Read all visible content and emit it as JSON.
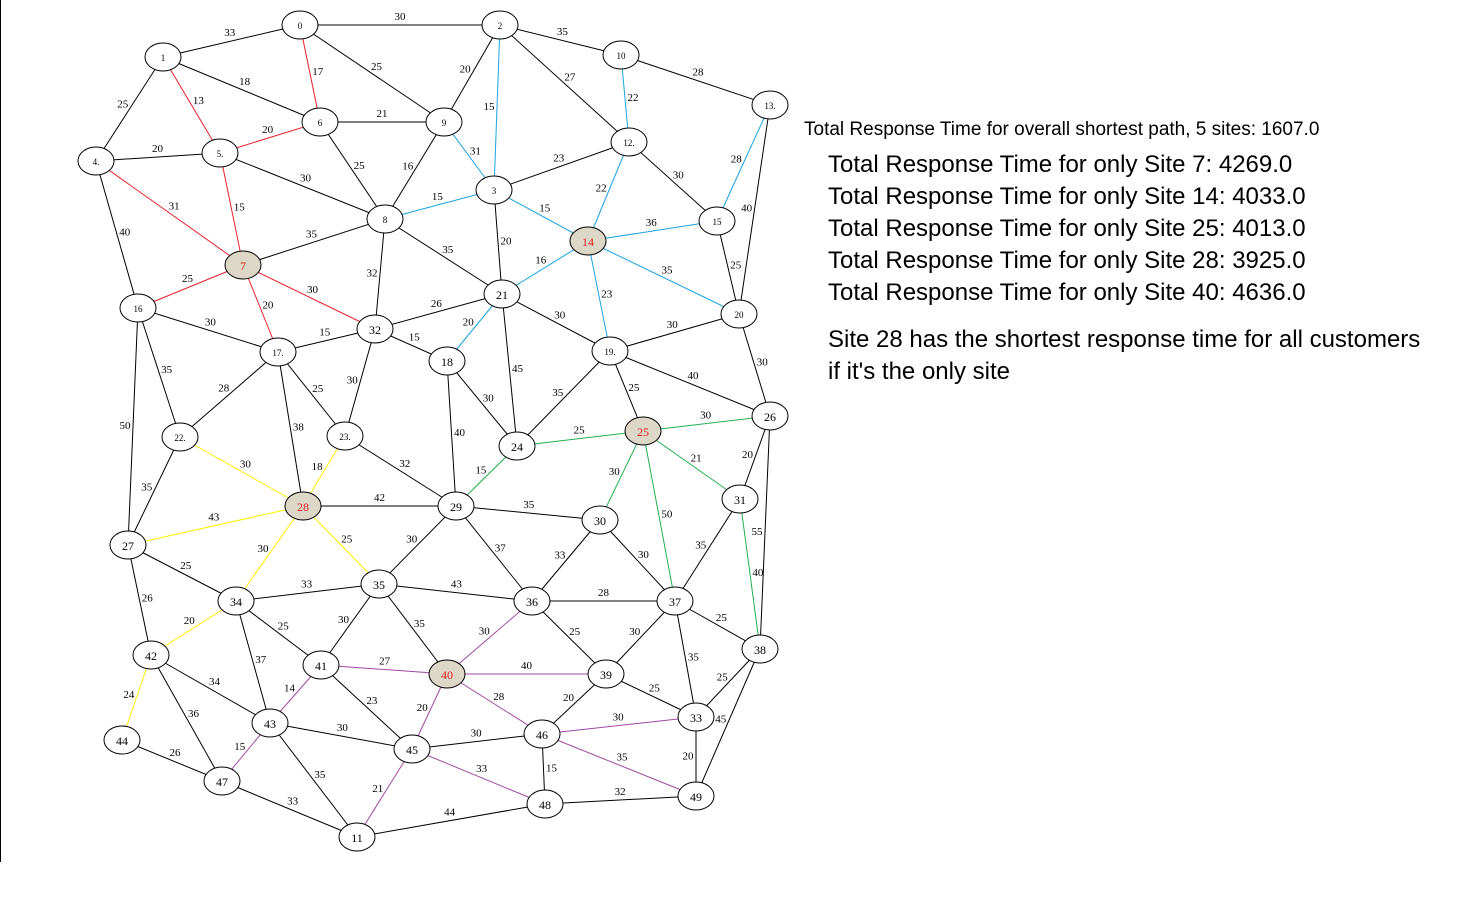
{
  "colors": {
    "edge": "#000000",
    "site_fill": "#ddd7c7",
    "site_label": "#e0201e",
    "site_7": "#e8212a",
    "site_14": "#1aa3e0",
    "site_25": "#22b14c",
    "site_28": "#fff200",
    "site_40": "#a349a4"
  },
  "graph": {
    "sites": [
      "7",
      "14",
      "25",
      "28",
      "40"
    ],
    "nodes": [
      {
        "id": "0",
        "label": "0"
      },
      {
        "id": "1",
        "label": "1"
      },
      {
        "id": "2",
        "label": "2"
      },
      {
        "id": "3",
        "label": "3"
      },
      {
        "id": "4",
        "label": "4."
      },
      {
        "id": "5",
        "label": "5."
      },
      {
        "id": "6",
        "label": "6"
      },
      {
        "id": "7",
        "label": "7"
      },
      {
        "id": "8",
        "label": "8"
      },
      {
        "id": "9",
        "label": "9"
      },
      {
        "id": "10",
        "label": "10"
      },
      {
        "id": "11",
        "label": "11"
      },
      {
        "id": "12",
        "label": "12."
      },
      {
        "id": "13",
        "label": "13."
      },
      {
        "id": "14",
        "label": "14"
      },
      {
        "id": "15",
        "label": "15"
      },
      {
        "id": "16",
        "label": "16"
      },
      {
        "id": "17",
        "label": "17."
      },
      {
        "id": "18",
        "label": "18"
      },
      {
        "id": "19",
        "label": "19."
      },
      {
        "id": "20",
        "label": "20"
      },
      {
        "id": "21",
        "label": "21"
      },
      {
        "id": "22",
        "label": "22."
      },
      {
        "id": "23",
        "label": "23."
      },
      {
        "id": "24",
        "label": "24"
      },
      {
        "id": "25",
        "label": "25"
      },
      {
        "id": "26",
        "label": "26"
      },
      {
        "id": "27",
        "label": "27"
      },
      {
        "id": "28",
        "label": "28"
      },
      {
        "id": "29",
        "label": "29"
      },
      {
        "id": "30",
        "label": "30"
      },
      {
        "id": "31",
        "label": "31"
      },
      {
        "id": "32",
        "label": "32"
      },
      {
        "id": "33",
        "label": "33"
      },
      {
        "id": "34",
        "label": "34"
      },
      {
        "id": "35",
        "label": "35"
      },
      {
        "id": "36",
        "label": "36"
      },
      {
        "id": "37",
        "label": "37"
      },
      {
        "id": "38",
        "label": "38"
      },
      {
        "id": "39",
        "label": "39"
      },
      {
        "id": "40",
        "label": "40"
      },
      {
        "id": "41",
        "label": "41"
      },
      {
        "id": "42",
        "label": "42"
      },
      {
        "id": "43",
        "label": "43"
      },
      {
        "id": "44",
        "label": "44"
      },
      {
        "id": "45",
        "label": "45"
      },
      {
        "id": "46",
        "label": "46"
      },
      {
        "id": "47",
        "label": "47"
      },
      {
        "id": "48",
        "label": "48"
      },
      {
        "id": "49",
        "label": "49"
      }
    ],
    "edges": [
      {
        "a": "0",
        "b": "1",
        "w": "33"
      },
      {
        "a": "0",
        "b": "2",
        "w": "30"
      },
      {
        "a": "0",
        "b": "6",
        "w": "17",
        "site": "7"
      },
      {
        "a": "0",
        "b": "9",
        "w": "25"
      },
      {
        "a": "1",
        "b": "4",
        "w": "25"
      },
      {
        "a": "1",
        "b": "5",
        "w": "13",
        "site": "7"
      },
      {
        "a": "1",
        "b": "6",
        "w": "18"
      },
      {
        "a": "2",
        "b": "3",
        "w": "15",
        "site": "14"
      },
      {
        "a": "2",
        "b": "9",
        "w": "20"
      },
      {
        "a": "2",
        "b": "10",
        "w": "35"
      },
      {
        "a": "2",
        "b": "12",
        "w": "27"
      },
      {
        "a": "3",
        "b": "8",
        "w": "15",
        "site": "14"
      },
      {
        "a": "3",
        "b": "9",
        "w": "31",
        "site": "14"
      },
      {
        "a": "3",
        "b": "12",
        "w": "23"
      },
      {
        "a": "3",
        "b": "14",
        "w": "15",
        "site": "14"
      },
      {
        "a": "3",
        "b": "21",
        "w": "20"
      },
      {
        "a": "4",
        "b": "5",
        "w": "20"
      },
      {
        "a": "4",
        "b": "7",
        "w": "31",
        "site": "7"
      },
      {
        "a": "4",
        "b": "16",
        "w": "40"
      },
      {
        "a": "5",
        "b": "6",
        "w": "20",
        "site": "7"
      },
      {
        "a": "5",
        "b": "7",
        "w": "15",
        "site": "7"
      },
      {
        "a": "5",
        "b": "8",
        "w": "30"
      },
      {
        "a": "6",
        "b": "8",
        "w": "25"
      },
      {
        "a": "6",
        "b": "9",
        "w": "21"
      },
      {
        "a": "7",
        "b": "8",
        "w": "35"
      },
      {
        "a": "7",
        "b": "16",
        "w": "25",
        "site": "7"
      },
      {
        "a": "7",
        "b": "17",
        "w": "20",
        "site": "7"
      },
      {
        "a": "7",
        "b": "32",
        "w": "30",
        "site": "7"
      },
      {
        "a": "8",
        "b": "9",
        "w": "16"
      },
      {
        "a": "8",
        "b": "21",
        "w": "35"
      },
      {
        "a": "8",
        "b": "32",
        "w": "32"
      },
      {
        "a": "10",
        "b": "12",
        "w": "22",
        "site": "14"
      },
      {
        "a": "10",
        "b": "13",
        "w": "28"
      },
      {
        "a": "12",
        "b": "14",
        "w": "22",
        "site": "14"
      },
      {
        "a": "12",
        "b": "15",
        "w": "30"
      },
      {
        "a": "13",
        "b": "15",
        "w": "28",
        "site": "14"
      },
      {
        "a": "13",
        "b": "20",
        "w": "40"
      },
      {
        "a": "14",
        "b": "15",
        "w": "36",
        "site": "14"
      },
      {
        "a": "14",
        "b": "19",
        "w": "23",
        "site": "14"
      },
      {
        "a": "14",
        "b": "20",
        "w": "35",
        "site": "14"
      },
      {
        "a": "14",
        "b": "21",
        "w": "16",
        "site": "14"
      },
      {
        "a": "15",
        "b": "20",
        "w": "25"
      },
      {
        "a": "16",
        "b": "17",
        "w": "30"
      },
      {
        "a": "16",
        "b": "22",
        "w": "35"
      },
      {
        "a": "16",
        "b": "27",
        "w": "50"
      },
      {
        "a": "17",
        "b": "22",
        "w": "28"
      },
      {
        "a": "17",
        "b": "23",
        "w": "25"
      },
      {
        "a": "17",
        "b": "28",
        "w": "38"
      },
      {
        "a": "17",
        "b": "32",
        "w": "15"
      },
      {
        "a": "18",
        "b": "21",
        "w": "20",
        "site": "14"
      },
      {
        "a": "18",
        "b": "24",
        "w": "30"
      },
      {
        "a": "18",
        "b": "29",
        "w": "40"
      },
      {
        "a": "18",
        "b": "32",
        "w": "15"
      },
      {
        "a": "19",
        "b": "20",
        "w": "30"
      },
      {
        "a": "19",
        "b": "21",
        "w": "30"
      },
      {
        "a": "19",
        "b": "24",
        "w": "35"
      },
      {
        "a": "19",
        "b": "25",
        "w": "25"
      },
      {
        "a": "19",
        "b": "26",
        "w": "40"
      },
      {
        "a": "20",
        "b": "26",
        "w": "30"
      },
      {
        "a": "21",
        "b": "24",
        "w": "45"
      },
      {
        "a": "21",
        "b": "32",
        "w": "26"
      },
      {
        "a": "22",
        "b": "27",
        "w": "35"
      },
      {
        "a": "22",
        "b": "28",
        "w": "30",
        "site": "28"
      },
      {
        "a": "23",
        "b": "28",
        "w": "18",
        "site": "28"
      },
      {
        "a": "23",
        "b": "29",
        "w": "32"
      },
      {
        "a": "23",
        "b": "32",
        "w": "30"
      },
      {
        "a": "24",
        "b": "25",
        "w": "25",
        "site": "25"
      },
      {
        "a": "24",
        "b": "29",
        "w": "15",
        "site": "25"
      },
      {
        "a": "25",
        "b": "26",
        "w": "30",
        "site": "25"
      },
      {
        "a": "25",
        "b": "30",
        "w": "30",
        "site": "25"
      },
      {
        "a": "25",
        "b": "31",
        "w": "21",
        "site": "25"
      },
      {
        "a": "25",
        "b": "37",
        "w": "50",
        "site": "25"
      },
      {
        "a": "26",
        "b": "31",
        "w": "20"
      },
      {
        "a": "26",
        "b": "38",
        "w": "55"
      },
      {
        "a": "27",
        "b": "28",
        "w": "43",
        "site": "28"
      },
      {
        "a": "27",
        "b": "34",
        "w": "25"
      },
      {
        "a": "27",
        "b": "42",
        "w": "26"
      },
      {
        "a": "28",
        "b": "29",
        "w": "42"
      },
      {
        "a": "28",
        "b": "34",
        "w": "30",
        "site": "28"
      },
      {
        "a": "28",
        "b": "35",
        "w": "25",
        "site": "28"
      },
      {
        "a": "29",
        "b": "30",
        "w": "35"
      },
      {
        "a": "29",
        "b": "35",
        "w": "30"
      },
      {
        "a": "29",
        "b": "36",
        "w": "37"
      },
      {
        "a": "30",
        "b": "36",
        "w": "33"
      },
      {
        "a": "30",
        "b": "37",
        "w": "30"
      },
      {
        "a": "31",
        "b": "37",
        "w": "35"
      },
      {
        "a": "31",
        "b": "38",
        "w": "40",
        "site": "25"
      },
      {
        "a": "33",
        "b": "37",
        "w": "35"
      },
      {
        "a": "33",
        "b": "38",
        "w": "25"
      },
      {
        "a": "33",
        "b": "39",
        "w": "25"
      },
      {
        "a": "33",
        "b": "46",
        "w": "30",
        "site": "40"
      },
      {
        "a": "33",
        "b": "49",
        "w": "20"
      },
      {
        "a": "34",
        "b": "35",
        "w": "33"
      },
      {
        "a": "34",
        "b": "41",
        "w": "25"
      },
      {
        "a": "34",
        "b": "42",
        "w": "20",
        "site": "28"
      },
      {
        "a": "34",
        "b": "43",
        "w": "37"
      },
      {
        "a": "35",
        "b": "36",
        "w": "43"
      },
      {
        "a": "35",
        "b": "40",
        "w": "35"
      },
      {
        "a": "35",
        "b": "41",
        "w": "30"
      },
      {
        "a": "36",
        "b": "37",
        "w": "28"
      },
      {
        "a": "36",
        "b": "39",
        "w": "25"
      },
      {
        "a": "36",
        "b": "40",
        "w": "30",
        "site": "40"
      },
      {
        "a": "37",
        "b": "38",
        "w": "25"
      },
      {
        "a": "37",
        "b": "39",
        "w": "30"
      },
      {
        "a": "38",
        "b": "49",
        "w": "45"
      },
      {
        "a": "39",
        "b": "40",
        "w": "40",
        "site": "40"
      },
      {
        "a": "39",
        "b": "46",
        "w": "20"
      },
      {
        "a": "40",
        "b": "41",
        "w": "27",
        "site": "40"
      },
      {
        "a": "40",
        "b": "45",
        "w": "20",
        "site": "40"
      },
      {
        "a": "40",
        "b": "46",
        "w": "28",
        "site": "40"
      },
      {
        "a": "41",
        "b": "43",
        "w": "14",
        "site": "40"
      },
      {
        "a": "41",
        "b": "45",
        "w": "23"
      },
      {
        "a": "42",
        "b": "43",
        "w": "34"
      },
      {
        "a": "42",
        "b": "44",
        "w": "24",
        "site": "28"
      },
      {
        "a": "42",
        "b": "47",
        "w": "36"
      },
      {
        "a": "43",
        "b": "45",
        "w": "30"
      },
      {
        "a": "43",
        "b": "47",
        "w": "15",
        "site": "40"
      },
      {
        "a": "43",
        "b": "11",
        "w": "35"
      },
      {
        "a": "44",
        "b": "47",
        "w": "26"
      },
      {
        "a": "45",
        "b": "46",
        "w": "30"
      },
      {
        "a": "45",
        "b": "48",
        "w": "33",
        "site": "40"
      },
      {
        "a": "45",
        "b": "11",
        "w": "21",
        "site": "40"
      },
      {
        "a": "46",
        "b": "48",
        "w": "15"
      },
      {
        "a": "46",
        "b": "49",
        "w": "35",
        "site": "40"
      },
      {
        "a": "47",
        "b": "11",
        "w": "33"
      },
      {
        "a": "48",
        "b": "49",
        "w": "32"
      },
      {
        "a": "48",
        "b": "11",
        "w": "44"
      }
    ]
  },
  "results": {
    "overall": "Total Response Time for overall shortest path, 5 sites: 1607.0",
    "site_lines": [
      "Total Response Time for only Site 7: 4269.0",
      "Total Response Time for only Site 14: 4033.0",
      "Total Response Time for only Site 25: 4013.0",
      "Total Response Time for only Site 28: 3925.0",
      "Total Response Time for only Site 40: 4636.0"
    ],
    "conclusion": "Site 28 has the shortest response time for all customers if it's the only site"
  }
}
